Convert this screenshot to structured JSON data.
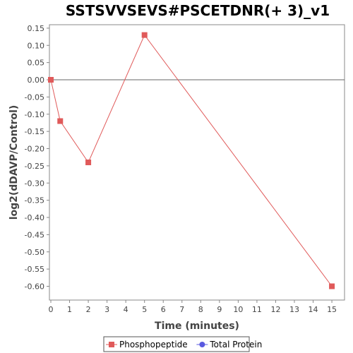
{
  "chart_data": {
    "type": "line",
    "title": "SSTSVVSEVS#PSCETDNR(+ 3)_v1",
    "xlabel": "Time (minutes)",
    "ylabel": "log2(dDAVP/Control)",
    "xlim": [
      0,
      15.6
    ],
    "ylim": [
      -0.64,
      0.16
    ],
    "x_ticks": [
      0,
      1,
      2,
      3,
      4,
      5,
      6,
      7,
      8,
      9,
      10,
      11,
      12,
      13,
      14,
      15
    ],
    "y_ticks": [
      0.15,
      0.1,
      0.05,
      0.0,
      -0.05,
      -0.1,
      -0.15,
      -0.2,
      -0.25,
      -0.3,
      -0.35,
      -0.4,
      -0.45,
      -0.5,
      -0.55,
      -0.6
    ],
    "y_tick_labels": [
      "0.15",
      "0.10",
      "0.05",
      "0.00",
      "-0.05",
      "-0.10",
      "-0.15",
      "-0.20",
      "-0.25",
      "-0.30",
      "-0.35",
      "-0.40",
      "-0.45",
      "-0.50",
      "-0.55",
      "-0.60"
    ],
    "zero_line": true,
    "grid": false,
    "legend_position": "bottom",
    "series": [
      {
        "name": "Phosphopeptide",
        "color": "#e05a5a",
        "marker": "square",
        "x": [
          0,
          0.5,
          2,
          5,
          15
        ],
        "y": [
          0.0,
          -0.12,
          -0.24,
          0.13,
          -0.6
        ]
      },
      {
        "name": "Total Protein",
        "color": "#5a5ae0",
        "marker": "circle",
        "x": [],
        "y": []
      }
    ]
  }
}
